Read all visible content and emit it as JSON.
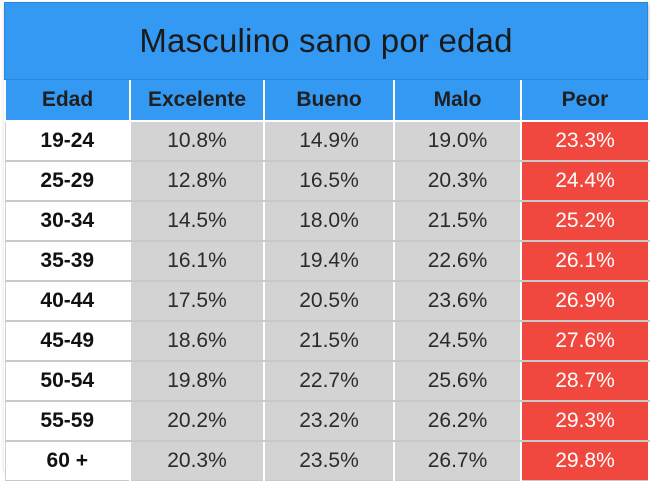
{
  "chart_data": {
    "type": "table",
    "title": "Masculino sano por edad",
    "columns": [
      "Edad",
      "Excelente",
      "Bueno",
      "Malo",
      "Peor"
    ],
    "rows": [
      {
        "edad": "19-24",
        "excelente": "10.8%",
        "bueno": "14.9%",
        "malo": "19.0%",
        "peor": "23.3%"
      },
      {
        "edad": "25-29",
        "excelente": "12.8%",
        "bueno": "16.5%",
        "malo": "20.3%",
        "peor": "24.4%"
      },
      {
        "edad": "30-34",
        "excelente": "14.5%",
        "bueno": "18.0%",
        "malo": "21.5%",
        "peor": "25.2%"
      },
      {
        "edad": "35-39",
        "excelente": "16.1%",
        "bueno": "19.4%",
        "malo": "22.6%",
        "peor": "26.1%"
      },
      {
        "edad": "40-44",
        "excelente": "17.5%",
        "bueno": "20.5%",
        "malo": "23.6%",
        "peor": "26.9%"
      },
      {
        "edad": "45-49",
        "excelente": "18.6%",
        "bueno": "21.5%",
        "malo": "24.5%",
        "peor": "27.6%"
      },
      {
        "edad": "50-54",
        "excelente": "19.8%",
        "bueno": "22.7%",
        "malo": "25.6%",
        "peor": "28.7%"
      },
      {
        "edad": "55-59",
        "excelente": "20.2%",
        "bueno": "23.2%",
        "malo": "26.2%",
        "peor": "29.3%"
      },
      {
        "edad": "60 +",
        "excelente": "20.3%",
        "bueno": "23.5%",
        "malo": "26.7%",
        "peor": "29.8%"
      }
    ]
  },
  "colors": {
    "header": "#3399f3",
    "cell": "#d3d3d3",
    "peor": "#f0473e"
  }
}
